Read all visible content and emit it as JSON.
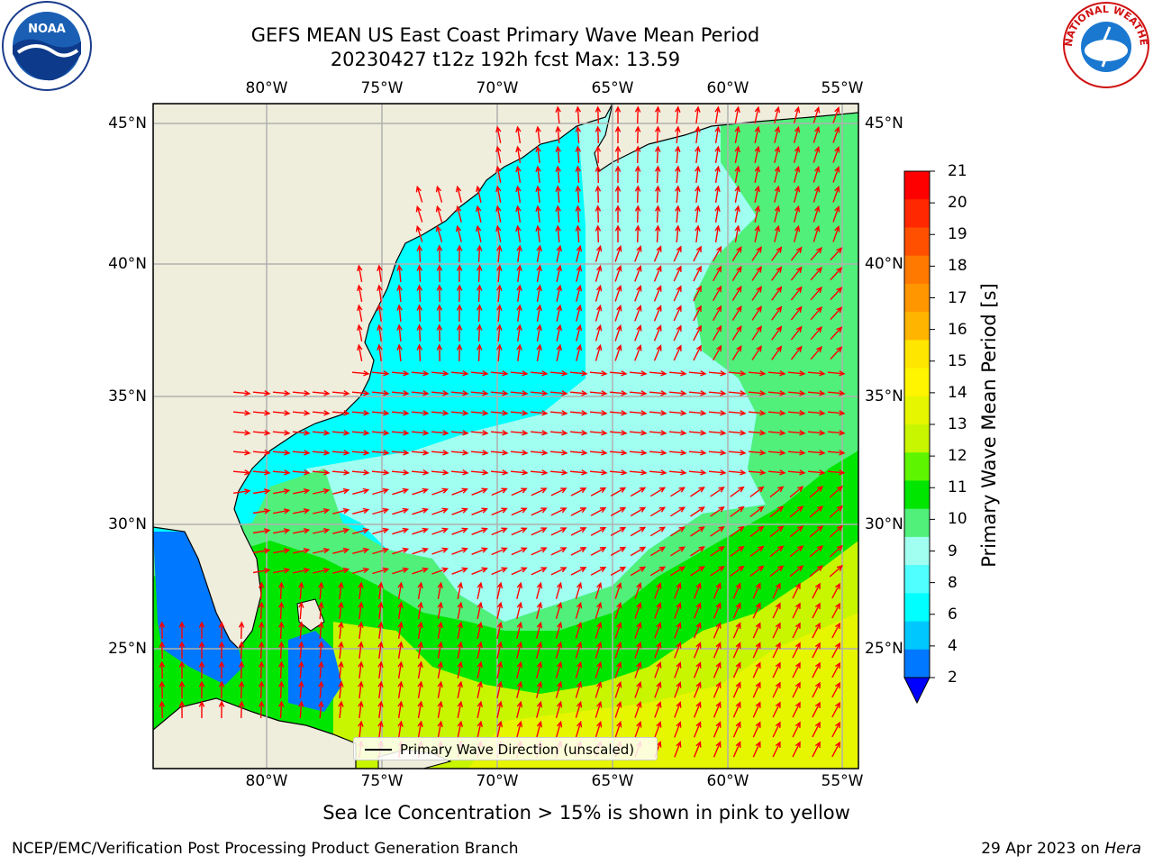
{
  "title_line1": "GEFS MEAN US East Coast Primary Wave Mean Period",
  "title_line2": "20230427 t12z 192h fcst   Max: 13.59",
  "lon_ticks": [
    "80°W",
    "75°W",
    "70°W",
    "65°W",
    "60°W",
    "55°W"
  ],
  "lat_ticks": [
    "45°N",
    "40°N",
    "35°N",
    "30°N",
    "25°N"
  ],
  "colorbar": {
    "label": "Primary Wave Mean Period [s]",
    "ticks": [
      "21",
      "20",
      "19",
      "18",
      "17",
      "16",
      "15",
      "14",
      "13",
      "12",
      "11",
      "10",
      "9",
      "8",
      "6",
      "4",
      "2"
    ],
    "colors": [
      "#ff0000",
      "#ff2800",
      "#ff5000",
      "#ff7800",
      "#ff9600",
      "#ffb400",
      "#ffe600",
      "#fff500",
      "#e6f500",
      "#c8f500",
      "#5ef500",
      "#00e600",
      "#50f07a",
      "#a0fff0",
      "#50ffff",
      "#00ffff",
      "#00c8ff",
      "#0078ff"
    ],
    "extend_color": "#0000ff"
  },
  "legend_text": "Primary Wave Direction (unscaled)",
  "ice_note": "Sea Ice Concentration > 15% is shown in pink to yellow",
  "footer_left": "NCEP/EMC/Verification Post Processing Product Generation Branch",
  "footer_date": "29 Apr 2023 on",
  "footer_host": "Hera",
  "logos": {
    "left": "NOAA",
    "right_text": "NATIONAL WEATHER SERVICE"
  },
  "map_colors": {
    "land": "#efeedc",
    "arrow": "#ff0000",
    "grid": "#b0b0b0"
  }
}
